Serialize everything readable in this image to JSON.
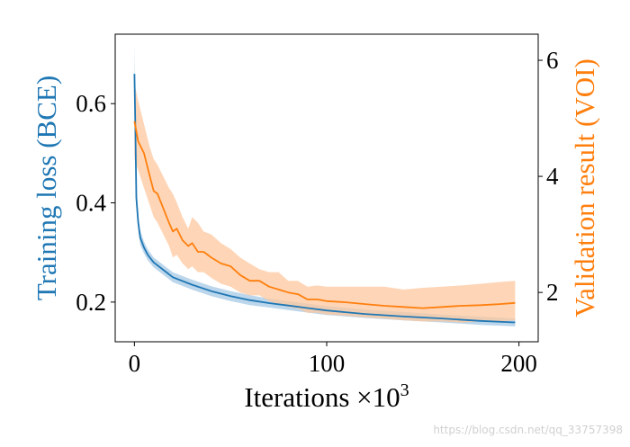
{
  "chart_data": {
    "type": "line",
    "xlabel": "Iterations ×10",
    "xlabel_exponent": "3",
    "xlim": [
      -10,
      210
    ],
    "xticks": [
      0,
      100,
      200
    ],
    "xtick_labels": [
      "0",
      "100",
      "200"
    ],
    "left_axis": {
      "label": "Training loss (BCE)",
      "color": "#1f77b4",
      "ylim": [
        0.12,
        0.74
      ],
      "ticks": [
        0.2,
        0.4,
        0.6
      ],
      "tick_labels": [
        "0.2",
        "0.4",
        "0.6"
      ]
    },
    "right_axis": {
      "label": "Validation result (VOI)",
      "color": "#ff7f0e",
      "ylim": [
        1.15,
        6.45
      ],
      "ticks": [
        2,
        4,
        6
      ],
      "tick_labels": [
        "2",
        "4",
        "6"
      ]
    },
    "series": [
      {
        "name": "Training loss (BCE)",
        "axis": "left",
        "color": "#1f77b4",
        "band_color": "#a6c8e4",
        "x": [
          0,
          0.5,
          1,
          2,
          3,
          5,
          7,
          10,
          15,
          20,
          30,
          40,
          50,
          60,
          70,
          80,
          90,
          100,
          120,
          140,
          160,
          180,
          198
        ],
        "y": [
          0.66,
          0.55,
          0.41,
          0.36,
          0.33,
          0.31,
          0.295,
          0.28,
          0.265,
          0.25,
          0.235,
          0.222,
          0.212,
          0.204,
          0.198,
          0.193,
          0.188,
          0.183,
          0.176,
          0.171,
          0.167,
          0.162,
          0.159
        ],
        "upper": [
          0.72,
          0.58,
          0.43,
          0.375,
          0.345,
          0.322,
          0.306,
          0.29,
          0.275,
          0.26,
          0.245,
          0.232,
          0.222,
          0.214,
          0.207,
          0.202,
          0.197,
          0.192,
          0.185,
          0.18,
          0.175,
          0.171,
          0.167
        ],
        "lower": [
          0.6,
          0.52,
          0.39,
          0.345,
          0.315,
          0.298,
          0.284,
          0.27,
          0.255,
          0.24,
          0.225,
          0.212,
          0.202,
          0.194,
          0.189,
          0.184,
          0.179,
          0.174,
          0.168,
          0.163,
          0.159,
          0.154,
          0.151
        ]
      },
      {
        "name": "Validation result (VOI)",
        "axis": "right",
        "color": "#ff7f0e",
        "band_color": "#fdc89f",
        "x": [
          0,
          2,
          5,
          8,
          10,
          12,
          15,
          18,
          20,
          22,
          25,
          28,
          30,
          33,
          36,
          40,
          45,
          50,
          55,
          60,
          65,
          70,
          75,
          80,
          85,
          90,
          95,
          100,
          110,
          120,
          130,
          140,
          150,
          160,
          170,
          180,
          190,
          198
        ],
        "y": [
          4.95,
          4.6,
          4.4,
          4.0,
          3.75,
          3.7,
          3.45,
          3.2,
          3.05,
          3.1,
          2.9,
          2.8,
          2.85,
          2.7,
          2.7,
          2.6,
          2.5,
          2.45,
          2.3,
          2.2,
          2.2,
          2.1,
          2.05,
          2.0,
          1.97,
          1.88,
          1.88,
          1.85,
          1.83,
          1.8,
          1.77,
          1.75,
          1.73,
          1.75,
          1.77,
          1.78,
          1.8,
          1.82
        ],
        "upper": [
          5.6,
          5.3,
          4.9,
          4.5,
          4.3,
          4.2,
          4.0,
          3.8,
          3.7,
          3.55,
          3.3,
          3.1,
          3.3,
          3.2,
          3.05,
          3.0,
          2.85,
          2.75,
          2.6,
          2.5,
          2.4,
          2.35,
          2.35,
          2.2,
          2.2,
          2.1,
          2.12,
          2.1,
          2.1,
          2.1,
          2.1,
          2.05,
          2.08,
          2.1,
          2.12,
          2.15,
          2.18,
          2.2
        ],
        "lower": [
          4.3,
          4.1,
          3.8,
          3.5,
          3.3,
          3.2,
          3.0,
          2.8,
          2.6,
          2.65,
          2.5,
          2.4,
          2.45,
          2.35,
          2.35,
          2.25,
          2.15,
          2.1,
          2.0,
          1.95,
          1.95,
          1.85,
          1.8,
          1.75,
          1.72,
          1.65,
          1.65,
          1.62,
          1.6,
          1.57,
          1.55,
          1.52,
          1.5,
          1.5,
          1.48,
          1.5,
          1.5,
          1.52
        ]
      }
    ]
  },
  "watermark": "https://blog.csdn.net/qq_33757398"
}
